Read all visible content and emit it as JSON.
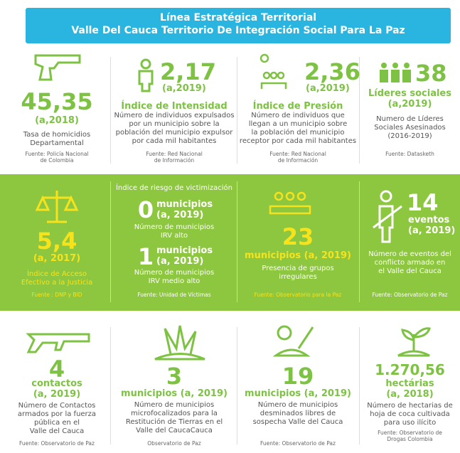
{
  "header": {
    "line1": "Línea Estratégica Territorial",
    "line2": "Valle Del Cauca Territorio De Integración Social Para La Paz"
  },
  "row1": [
    {
      "value": "45,35",
      "period": "(a,2018)",
      "desc": [
        "Tasa de homicidios",
        "Departamental"
      ],
      "source": [
        "Fuente: Policía Nacional",
        "de Colombia"
      ]
    },
    {
      "value": "2,17",
      "period": "(a,2019)",
      "title": "Índice de Intensidad",
      "desc": [
        "Número de individuos expulsados",
        "por un municipio sobre la",
        "población del municipio expulsor",
        "por cada mil habitantes"
      ],
      "source": [
        "Fuente: Red Nacional",
        "de Información"
      ]
    },
    {
      "value": "2,36",
      "period": "(a,2019)",
      "title": "Índice de Presión",
      "desc": [
        "Número de individuos que",
        "llegan a un municipio sobre",
        "la población del municipio",
        "receptor por cada mil  habitantes"
      ],
      "source": [
        "Fuente: Red Nacional",
        "de Información"
      ]
    },
    {
      "value": "38",
      "title": "Líderes sociales",
      "period": "(a,2019)",
      "desc": [
        "Numero de Líderes",
        "Sociales Asesinados",
        "(2016-2019)"
      ],
      "source": [
        "Fuente: Datasketh"
      ]
    }
  ],
  "row2": [
    {
      "value": "5,4",
      "period": "(a, 2017)",
      "desc": [
        "Índice de Acceso",
        "Efectivo a la Justicia"
      ],
      "source": [
        "Fuente : DNP y BID"
      ]
    },
    {
      "heading": "Índice de riesgo de victimización",
      "items": [
        {
          "value": "0",
          "unit": "municipios",
          "period": "(a, 2019)",
          "desc": [
            "Número de municipios",
            "IRV alto"
          ]
        },
        {
          "value": "1",
          "unit": "municipios",
          "period": "(a, 2019)",
          "desc": [
            "Número de municipios",
            "IRV medio alto"
          ]
        }
      ],
      "source": [
        "Fuente: Unidad de Víctimas"
      ]
    },
    {
      "value": "23",
      "unit": "municipios (a, 2019)",
      "desc": [
        "Presencia de grupos",
        "irregulares"
      ],
      "source": [
        "Fuente: Observatorio para la Paz"
      ]
    },
    {
      "value": "14",
      "unit": "eventos",
      "period": "(a, 2019)",
      "desc": [
        "Número de eventos del",
        "conflicto armado en",
        "el Valle del Cauca"
      ],
      "source": [
        "Fuente: Observatorio de Paz"
      ]
    }
  ],
  "row3": [
    {
      "value": "4",
      "unit": "contactos",
      "period": "(a, 2019)",
      "desc": [
        "Número de  Contactos",
        "armados por la fuerza",
        "pública en el",
        "Valle del Cauca"
      ],
      "source": [
        "Fuente: Observatorio de Paz"
      ]
    },
    {
      "value": "3",
      "unit": "municipios (a, 2019)",
      "desc": [
        "Número de municipios",
        "microfocalizados para la",
        "Restitución de Tierras en el",
        "Valle del CaucaCauca"
      ],
      "source": [
        "Observatorio de Paz"
      ]
    },
    {
      "value": "19",
      "unit": "municipios (a, 2019)",
      "desc": [
        "Número de municipios",
        "desminados libres de",
        "sospecha Valle del Cauca"
      ],
      "source": [
        "Fuente: Observatorio de Paz"
      ]
    },
    {
      "value": "1.270,56",
      "unit": "hectárias",
      "period": "(a, 2018)",
      "desc": [
        "Número de hectarias de",
        "hoja de coca cultivada",
        "para uso ilícito"
      ],
      "source": [
        "Fuente: Observatorio de",
        "Drogas Colombia"
      ]
    }
  ]
}
